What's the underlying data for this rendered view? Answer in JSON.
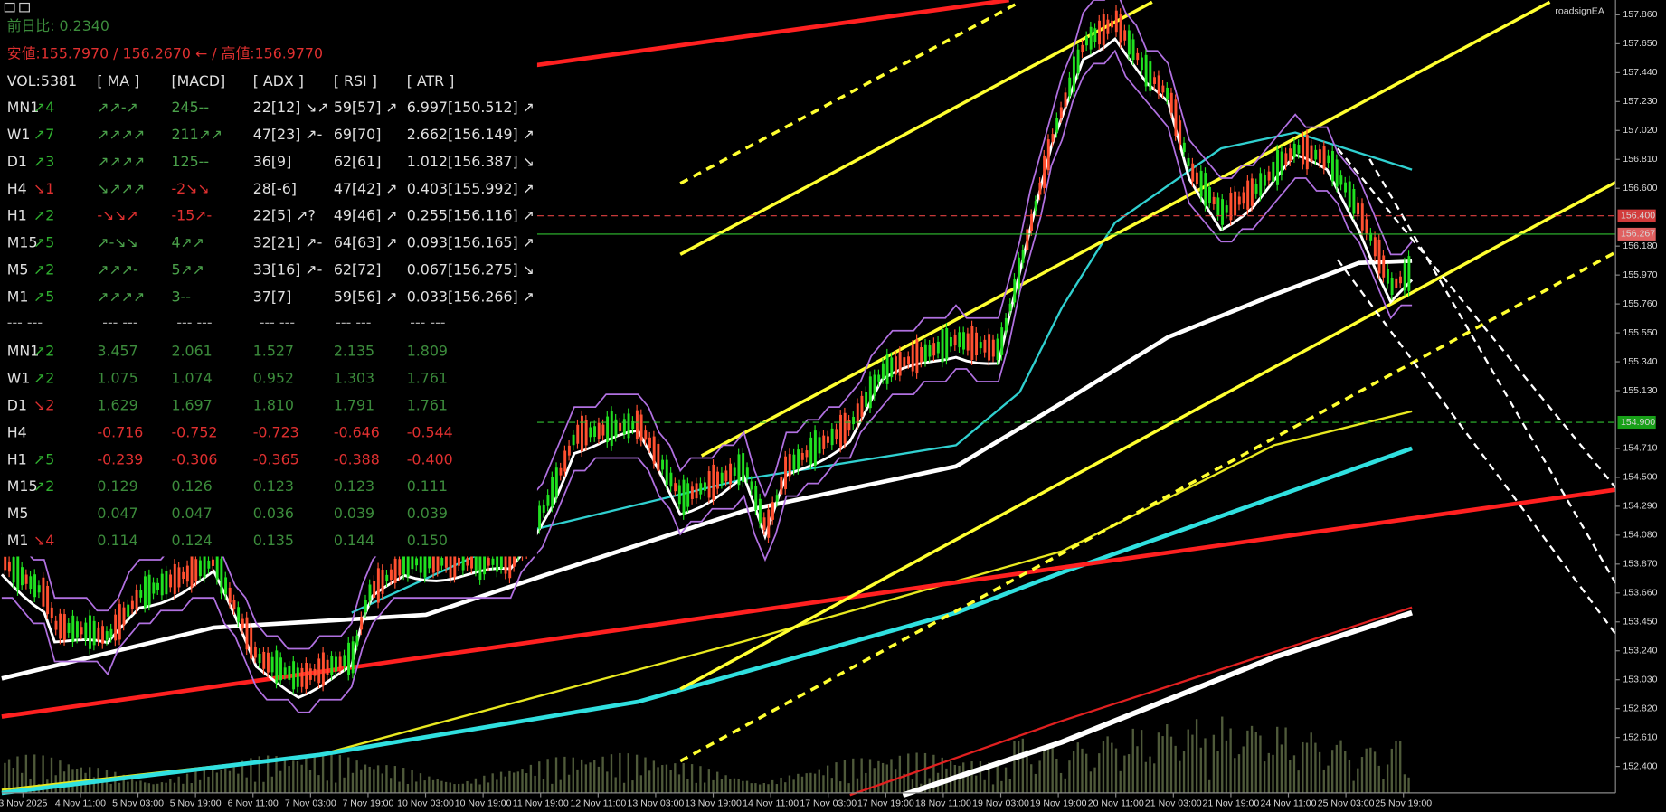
{
  "info": {
    "change": "前日比: 0.2340",
    "range": "安値:155.7970 / 156.2670 ← / 高値:156.9770"
  },
  "table": {
    "header": [
      "VOL:5381",
      "[ MA ]",
      "[MACD]",
      "[ ADX ]",
      "[ RSI ]",
      "[ ATR ]"
    ],
    "rows": [
      [
        "MN1",
        "↗4",
        "↗↗-↗",
        "245--",
        "22[12] ↘↗",
        "59[57] ↗",
        "6.997[150.512] ↗"
      ],
      [
        "W1",
        "↗7",
        "↗↗↗↗",
        "211↗↗",
        "47[23] ↗-",
        "69[70]",
        "2.662[156.149] ↗"
      ],
      [
        "D1",
        "↗3",
        "↗↗↗↗",
        "125--",
        "36[9]",
        "62[61]",
        "1.012[156.387] ↘"
      ],
      [
        "H4",
        "↘1",
        "↘↗↗↗",
        "-2↘↘",
        "28[-6]",
        "47[42] ↗",
        "0.403[155.992] ↗"
      ],
      [
        "H1",
        "↗2",
        "-↘↘↗",
        "-15↗-",
        "22[5] ↗?",
        "49[46] ↗",
        "0.255[156.116] ↗"
      ],
      [
        "M15",
        "↗5",
        "↗-↘↘",
        "4↗↗",
        "32[21] ↗-",
        "64[63] ↗",
        "0.093[156.165] ↗"
      ],
      [
        "M5",
        "↗2",
        "↗↗↗-",
        "5↗↗",
        "33[16] ↗-",
        "62[72]",
        "0.067[156.275] ↘"
      ],
      [
        "M1",
        "↗5",
        "↗↗↗↗",
        "3--",
        "37[7]",
        "59[56] ↗",
        "0.033[156.266] ↗"
      ]
    ]
  },
  "separator": [
    "--- ---",
    "--- ---",
    "--- ---",
    "--- ---",
    "--- ---",
    "--- ---"
  ],
  "table2": {
    "rows": [
      [
        "MN1",
        "↗2",
        "3.457",
        "2.061",
        "1.527",
        "2.135",
        "1.809"
      ],
      [
        "W1",
        "↗2",
        "1.075",
        "1.074",
        "0.952",
        "1.303",
        "1.761"
      ],
      [
        "D1",
        "↘2",
        "1.629",
        "1.697",
        "1.810",
        "1.791",
        "1.761"
      ],
      [
        "H4",
        null,
        "-0.716",
        "-0.752",
        "-0.723",
        "-0.646",
        "-0.544"
      ],
      [
        "H1",
        "↗5",
        "-0.239",
        "-0.306",
        "-0.365",
        "-0.388",
        "-0.400"
      ],
      [
        "M15",
        "↗2",
        "0.129",
        "0.126",
        "0.123",
        "0.123",
        "0.111"
      ],
      [
        "M5",
        null,
        "0.047",
        "0.047",
        "0.036",
        "0.039",
        "0.039"
      ],
      [
        "M1",
        "↘4",
        "0.114",
        "0.124",
        "0.135",
        "0.144",
        "0.150"
      ]
    ]
  },
  "brand": "roadsignEA",
  "price_axis": [
    "157.860",
    "157.650",
    "157.440",
    "157.230",
    "157.020",
    "156.810",
    "156.600",
    "156.180",
    "155.970",
    "155.760",
    "155.550",
    "155.340",
    "155.130",
    "154.710",
    "154.500",
    "154.290",
    "154.080",
    "153.870",
    "153.660",
    "153.450",
    "153.240",
    "153.030",
    "152.820",
    "152.610",
    "152.400"
  ],
  "price_tags": [
    {
      "label": "156.400",
      "color": "#d23c3c"
    },
    {
      "label": "156.267",
      "color": "#e06060"
    },
    {
      "label": "154.900",
      "color": "#18a018"
    }
  ],
  "time_axis": [
    "3 Nov 2025",
    "4 Nov 11:00",
    "5 Nov 03:00",
    "5 Nov 19:00",
    "6 Nov 11:00",
    "7 Nov 03:00",
    "7 Nov 19:00",
    "10 Nov 03:00",
    "10 Nov 19:00",
    "11 Nov 19:00",
    "12 Nov 11:00",
    "13 Nov 03:00",
    "13 Nov 19:00",
    "14 Nov 11:00",
    "17 Nov 03:00",
    "17 Nov 19:00",
    "18 Nov 11:00",
    "19 Nov 03:00",
    "19 Nov 19:00",
    "20 Nov 11:00",
    "21 Nov 03:00",
    "21 Nov 19:00",
    "24 Nov 11:00",
    "25 Nov 03:00",
    "25 Nov 19:00"
  ]
}
